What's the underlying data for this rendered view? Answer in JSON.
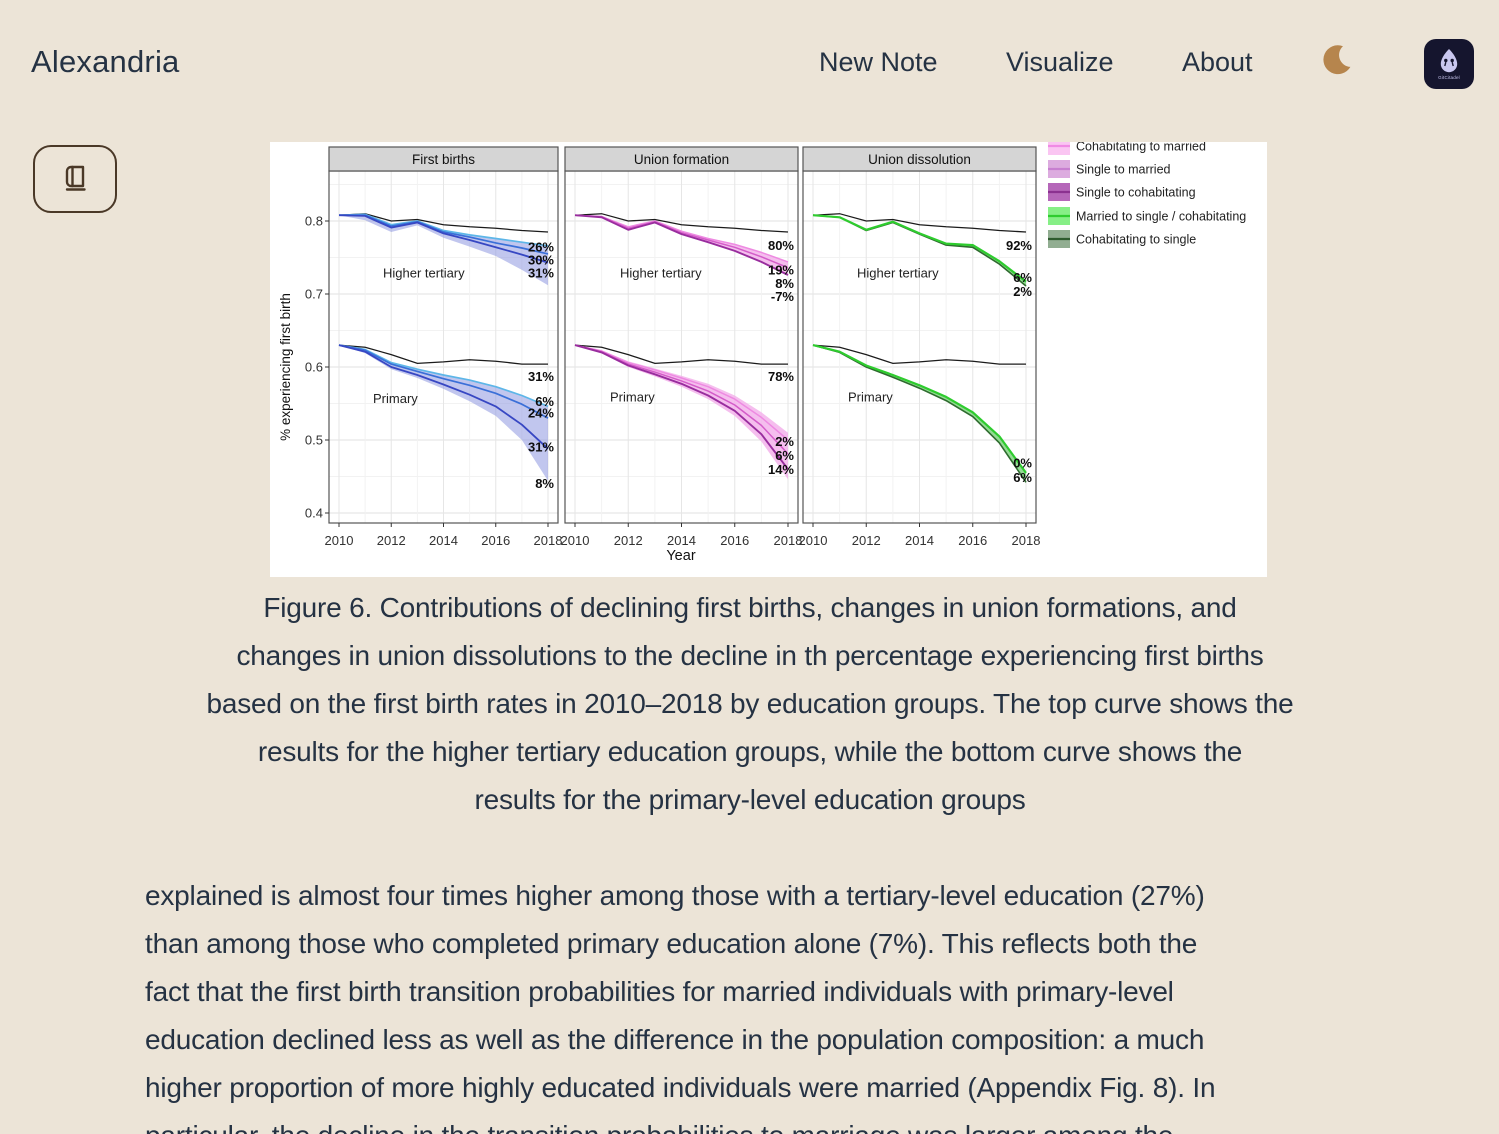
{
  "colors": {
    "background": "#ece4d7",
    "text": "#253243",
    "moon": "#b6854d",
    "button_border": "#4a3827",
    "logo_background": "#15152e",
    "logo_glyph": "#c9c7ef"
  },
  "header": {
    "title": "Alexandria",
    "nav": [
      {
        "label": "New Note"
      },
      {
        "label": "Visualize"
      },
      {
        "label": "About"
      }
    ],
    "logo_caption": "GitCitadel"
  },
  "figure": {
    "caption_lines": [
      "Figure 6. Contributions of declining first births, changes in union formations, and",
      "changes in union dissolutions to the decline in th percentage experiencing first births",
      "based on the first birth rates in 2010–2018 by education groups. The top curve shows the",
      "results for the higher tertiary education groups, while the bottom curve shows the",
      "results for the primary-level education groups"
    ]
  },
  "article": {
    "lines": [
      "explained is almost four times higher among those with a tertiary-level education (27%)",
      "than among those who completed primary education alone (7%). This reflects both the",
      "fact that the first birth transition probabilities for married individuals with primary-level",
      "education declined less as well as the difference in the population composition: a much",
      "higher proportion of more highly educated individuals were married (Appendix Fig. 8). In"
    ],
    "clipped_line": "particular, the decline in the transition probabilities to marriage was larger among the"
  },
  "chart_data": {
    "type": "line",
    "x": [
      2010,
      2011,
      2012,
      2013,
      2014,
      2015,
      2016,
      2017,
      2018
    ],
    "xticks": [
      2010,
      2012,
      2014,
      2016,
      2018
    ],
    "yticks": [
      0.8,
      0.7,
      0.6,
      0.5,
      0.4
    ],
    "ylim": [
      0.377,
      0.867
    ],
    "xlabel": "Year",
    "ylabel": "% experiencing first birth",
    "grid": "on",
    "legend_position": "top-right",
    "panels": [
      {
        "title": "First births",
        "clusters": [
          {
            "name": "Higher tertiary",
            "name_pos": {
              "x_off": 54,
              "v": 0.728
            },
            "reference": [
              0.808,
              0.81,
              0.8,
              0.802,
              0.795,
              0.792,
              0.79,
              0.787,
              0.785
            ],
            "ribbon": {
              "upper": [
                0.808,
                0.809,
                0.795,
                0.8,
                0.787,
                0.781,
                0.776,
                0.771,
                0.766
              ],
              "lower": [
                0.808,
                0.801,
                0.785,
                0.794,
                0.777,
                0.765,
                0.752,
                0.733,
                0.712
              ],
              "fill": "#8e97e0",
              "opacity": 0.55
            },
            "lines": [
              {
                "color": "#5db6e8",
                "width": 1.7,
                "values": [
                  0.808,
                  0.809,
                  0.795,
                  0.8,
                  0.787,
                  0.781,
                  0.776,
                  0.771,
                  0.766
                ]
              },
              {
                "color": "#3a6fd8",
                "width": 1.7,
                "values": [
                  0.808,
                  0.808,
                  0.793,
                  0.799,
                  0.785,
                  0.778,
                  0.77,
                  0.763,
                  0.755
                ]
              },
              {
                "color": "#3747c3",
                "width": 1.8,
                "values": [
                  0.808,
                  0.807,
                  0.791,
                  0.798,
                  0.783,
                  0.774,
                  0.764,
                  0.754,
                  0.743
                ]
              }
            ],
            "labels": [
              {
                "text": "26%",
                "v": 0.764
              },
              {
                "text": "30%",
                "v": 0.746
              },
              {
                "text": "31%",
                "v": 0.728
              }
            ]
          },
          {
            "name": "Primary",
            "name_pos": {
              "x_off": 44,
              "v": 0.556
            },
            "reference": [
              0.63,
              0.627,
              0.617,
              0.605,
              0.607,
              0.61,
              0.608,
              0.604,
              0.604
            ],
            "ribbon": {
              "upper": [
                0.63,
                0.624,
                0.606,
                0.597,
                0.589,
                0.582,
                0.573,
                0.561,
                0.546
              ],
              "lower": [
                0.63,
                0.619,
                0.597,
                0.585,
                0.57,
                0.553,
                0.533,
                0.5,
                0.444
              ],
              "fill": "#8e97e0",
              "opacity": 0.55
            },
            "lines": [
              {
                "color": "#5db6e8",
                "width": 1.7,
                "values": [
                  0.63,
                  0.624,
                  0.606,
                  0.597,
                  0.589,
                  0.582,
                  0.573,
                  0.561,
                  0.546
                ]
              },
              {
                "color": "#3a6fd8",
                "width": 1.7,
                "values": [
                  0.63,
                  0.623,
                  0.604,
                  0.594,
                  0.584,
                  0.575,
                  0.564,
                  0.549,
                  0.53
                ]
              },
              {
                "color": "#3747c3",
                "width": 1.8,
                "values": [
                  0.63,
                  0.621,
                  0.6,
                  0.589,
                  0.576,
                  0.562,
                  0.546,
                  0.521,
                  0.488
                ]
              }
            ],
            "labels": [
              {
                "text": "31%",
                "v": 0.586
              },
              {
                "text": "6%",
                "v": 0.552
              },
              {
                "text": "24%",
                "v": 0.536
              },
              {
                "text": "31%",
                "v": 0.49
              },
              {
                "text": "8%",
                "v": 0.44
              }
            ]
          }
        ]
      },
      {
        "title": "Union formation",
        "clusters": [
          {
            "name": "Higher tertiary",
            "name_pos": {
              "x_off": 55,
              "v": 0.728
            },
            "reference": [
              0.808,
              0.81,
              0.8,
              0.802,
              0.795,
              0.792,
              0.79,
              0.787,
              0.785
            ],
            "ribbon": {
              "upper": [
                0.808,
                0.806,
                0.792,
                0.8,
                0.786,
                0.776,
                0.768,
                0.757,
                0.744
              ],
              "lower": [
                0.808,
                0.805,
                0.788,
                0.798,
                0.782,
                0.771,
                0.759,
                0.744,
                0.726
              ],
              "fill": "#f2aeea",
              "opacity": 0.8
            },
            "lines": [
              {
                "color": "#ee8ae2",
                "width": 1.5,
                "values": [
                  0.808,
                  0.806,
                  0.792,
                  0.8,
                  0.786,
                  0.776,
                  0.768,
                  0.757,
                  0.744
                ]
              },
              {
                "color": "#d45cc9",
                "width": 1.5,
                "values": [
                  0.808,
                  0.806,
                  0.79,
                  0.799,
                  0.784,
                  0.774,
                  0.764,
                  0.751,
                  0.736
                ]
              },
              {
                "color": "#992d9e",
                "width": 1.9,
                "values": [
                  0.808,
                  0.805,
                  0.788,
                  0.798,
                  0.782,
                  0.771,
                  0.759,
                  0.744,
                  0.726
                ]
              }
            ],
            "labels": [
              {
                "text": "80%",
                "v": 0.766
              },
              {
                "text": "19%",
                "v": 0.732
              },
              {
                "text": "8%",
                "v": 0.714
              },
              {
                "text": "-7%",
                "v": 0.696
              }
            ]
          },
          {
            "name": "Primary",
            "name_pos": {
              "x_off": 45,
              "v": 0.558
            },
            "reference": [
              0.63,
              0.627,
              0.617,
              0.605,
              0.607,
              0.61,
              0.608,
              0.604,
              0.604
            ],
            "ribbon": {
              "upper": [
                0.63,
                0.623,
                0.608,
                0.598,
                0.588,
                0.577,
                0.561,
                0.538,
                0.51
              ],
              "lower": [
                0.63,
                0.619,
                0.6,
                0.587,
                0.573,
                0.556,
                0.533,
                0.498,
                0.446
              ],
              "fill": "#f2aeea",
              "opacity": 0.8
            },
            "lines": [
              {
                "color": "#ee8ae2",
                "width": 1.5,
                "values": [
                  0.63,
                  0.622,
                  0.606,
                  0.596,
                  0.585,
                  0.573,
                  0.556,
                  0.531,
                  0.5
                ]
              },
              {
                "color": "#d45cc9",
                "width": 1.5,
                "values": [
                  0.63,
                  0.621,
                  0.604,
                  0.593,
                  0.581,
                  0.567,
                  0.548,
                  0.52,
                  0.481
                ]
              },
              {
                "color": "#992d9e",
                "width": 1.9,
                "values": [
                  0.63,
                  0.62,
                  0.602,
                  0.59,
                  0.577,
                  0.561,
                  0.54,
                  0.508,
                  0.46
                ]
              }
            ],
            "labels": [
              {
                "text": "78%",
                "v": 0.586
              },
              {
                "text": "2%",
                "v": 0.497
              },
              {
                "text": "6%",
                "v": 0.478
              },
              {
                "text": "14%",
                "v": 0.459
              }
            ]
          }
        ]
      },
      {
        "title": "Union dissolution",
        "clusters": [
          {
            "name": "Higher tertiary",
            "name_pos": {
              "x_off": 54,
              "v": 0.728
            },
            "reference": [
              0.808,
              0.81,
              0.8,
              0.802,
              0.795,
              0.792,
              0.79,
              0.787,
              0.785
            ],
            "ribbon": {
              "upper": [
                0.808,
                0.805,
                0.788,
                0.799,
                0.783,
                0.769,
                0.767,
                0.745,
                0.717
              ],
              "lower": [
                0.808,
                0.805,
                0.787,
                0.798,
                0.782,
                0.767,
                0.764,
                0.741,
                0.711
              ],
              "fill": "#79d279",
              "opacity": 0.8
            },
            "lines": [
              {
                "color": "#2e6b2e",
                "width": 1.6,
                "values": [
                  0.808,
                  0.805,
                  0.787,
                  0.798,
                  0.782,
                  0.767,
                  0.764,
                  0.741,
                  0.711
                ]
              },
              {
                "color": "#2ecc2e",
                "width": 2.2,
                "values": [
                  0.808,
                  0.805,
                  0.788,
                  0.799,
                  0.783,
                  0.769,
                  0.767,
                  0.745,
                  0.717
                ]
              }
            ],
            "labels": [
              {
                "text": "92%",
                "v": 0.766
              },
              {
                "text": "6%",
                "v": 0.722
              },
              {
                "text": "2%",
                "v": 0.703
              }
            ]
          },
          {
            "name": "Primary",
            "name_pos": {
              "x_off": 45,
              "v": 0.558
            },
            "reference": [
              0.63,
              0.627,
              0.617,
              0.605,
              0.607,
              0.61,
              0.608,
              0.604,
              0.604
            ],
            "ribbon": {
              "upper": [
                0.63,
                0.621,
                0.602,
                0.589,
                0.575,
                0.559,
                0.538,
                0.505,
                0.455
              ],
              "lower": [
                0.63,
                0.62,
                0.6,
                0.586,
                0.571,
                0.554,
                0.532,
                0.496,
                0.442
              ],
              "fill": "#79d279",
              "opacity": 0.8
            },
            "lines": [
              {
                "color": "#2e6b2e",
                "width": 1.6,
                "values": [
                  0.63,
                  0.62,
                  0.6,
                  0.586,
                  0.571,
                  0.554,
                  0.532,
                  0.496,
                  0.442
                ]
              },
              {
                "color": "#2ecc2e",
                "width": 2.2,
                "values": [
                  0.63,
                  0.621,
                  0.602,
                  0.589,
                  0.575,
                  0.559,
                  0.538,
                  0.505,
                  0.455
                ]
              }
            ],
            "labels": [
              {
                "text": "0%",
                "v": 0.468
              },
              {
                "text": "6%",
                "v": 0.448
              }
            ]
          }
        ]
      }
    ],
    "legend": [
      {
        "label": "Cohabitating to married",
        "fill": "#fac5f2",
        "line": "#f08ae4",
        "clipped": true
      },
      {
        "label": "Single to married",
        "fill": "#dcabdf",
        "line": "#c77fd0"
      },
      {
        "label": "Single to cohabitating",
        "fill": "#b566b9",
        "line": "#8b3190"
      },
      {
        "label": "Married to single / cohabitating",
        "fill": "#86ef86",
        "line": "#2ecc2e"
      },
      {
        "label": "Cohabitating to single",
        "fill": "#91ad91",
        "line": "#2e5b2e"
      }
    ]
  }
}
